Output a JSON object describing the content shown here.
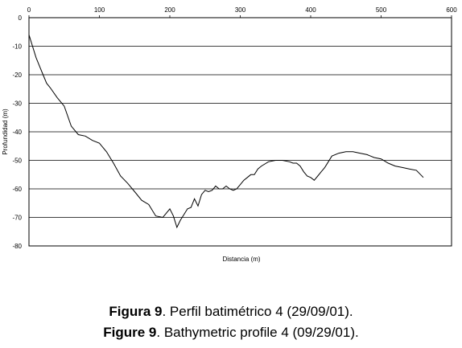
{
  "chart_data": {
    "type": "line",
    "title": "",
    "xlabel": "Distancia (m)",
    "ylabel": "Profundidad (m)",
    "xlim": [
      0,
      600
    ],
    "ylim": [
      -80,
      0
    ],
    "x_ticks": [
      "0",
      "100",
      "200",
      "300",
      "400",
      "500",
      "600"
    ],
    "y_ticks": [
      "0",
      "-10",
      "-20",
      "-30",
      "-40",
      "-50",
      "-60",
      "-70",
      "-80"
    ],
    "x_tick_values": [
      0,
      100,
      200,
      300,
      400,
      500,
      600
    ],
    "y_tick_values": [
      0,
      -10,
      -20,
      -30,
      -40,
      -50,
      -60,
      -70,
      -80
    ],
    "grid": "horizontal",
    "series": [
      {
        "x": [
          0,
          5,
          10,
          15,
          20,
          25,
          30,
          40,
          50,
          60,
          70,
          80,
          90,
          100,
          110,
          120,
          130,
          140,
          150,
          160,
          170,
          180,
          190,
          200,
          205,
          210,
          215,
          220,
          225,
          230,
          235,
          240,
          245,
          250,
          255,
          260,
          265,
          270,
          275,
          280,
          285,
          290,
          295,
          300,
          305,
          310,
          315,
          320,
          325,
          330,
          340,
          350,
          360,
          370,
          375,
          380,
          385,
          390,
          395,
          400,
          405,
          410,
          415,
          420,
          425,
          430,
          440,
          450,
          460,
          470,
          480,
          485,
          490,
          500,
          510,
          520,
          530,
          540,
          550,
          560
        ],
        "y": [
          -6,
          -10,
          -14,
          -17,
          -20,
          -23,
          -24.5,
          -28,
          -31,
          -38,
          -41,
          -41.5,
          -43,
          -44,
          -47,
          -51,
          -55.5,
          -58,
          -61,
          -64,
          -65.5,
          -69.5,
          -70,
          -67,
          -69.5,
          -73.5,
          -71,
          -69,
          -67,
          -66.5,
          -63.5,
          -66,
          -62,
          -60.5,
          -61,
          -60.5,
          -59,
          -60,
          -60,
          -59,
          -60,
          -60.5,
          -60,
          -58.5,
          -57,
          -56,
          -55,
          -55,
          -53,
          -52,
          -50.5,
          -50,
          -50,
          -50.5,
          -51,
          -51,
          -52,
          -54,
          -55.5,
          -56,
          -57,
          -55.5,
          -54,
          -52.5,
          -50.5,
          -48.5,
          -47.5,
          -47,
          -47,
          -47.5,
          -48,
          -48.5,
          -49,
          -49.5,
          -51,
          -52,
          -52.5,
          -53,
          -53.5,
          -56
        ]
      }
    ]
  },
  "captions": {
    "line1_label": "Figura 9",
    "line1_text": ". Perfil batimétrico 4 (29/09/01).",
    "line2_label": "Figure 9",
    "line2_text": ". Bathymetric profile 4 (09/29/01)."
  }
}
